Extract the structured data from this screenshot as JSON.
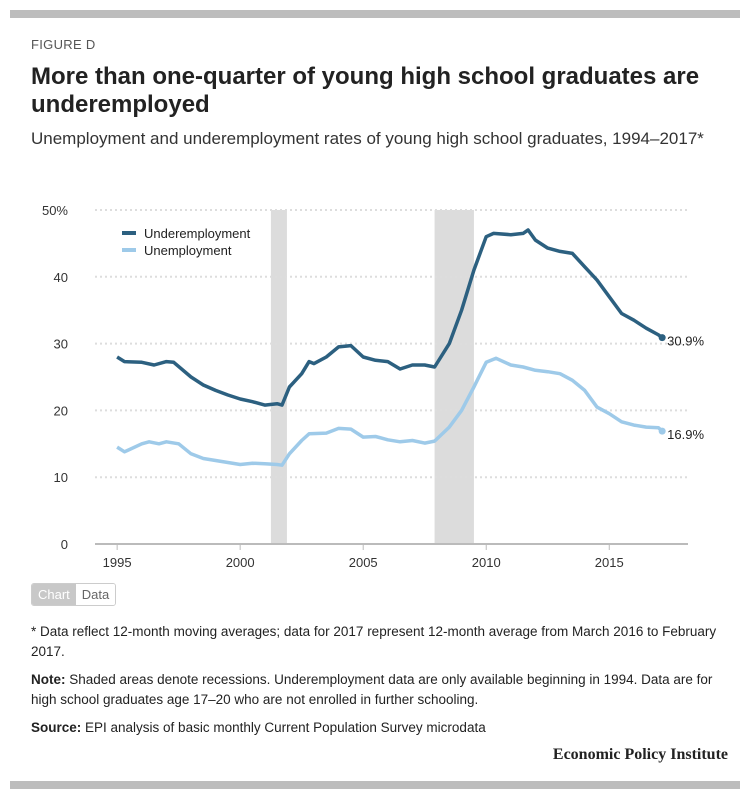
{
  "figure_label": "FIGURE D",
  "title": "More than one-quarter of young high school graduates are underemployed",
  "subtitle": "Unemployment and underemployment rates of young high school graduates, 1994–2017*",
  "toggle": {
    "chart": "Chart",
    "data": "Data"
  },
  "notes": {
    "footnote": "* Data reflect 12-month moving averages; data for 2017 represent 12-month average from March 2016 to February 2017.",
    "note_label": "Note:",
    "note_text": " Shaded areas denote recessions. Underemployment data are only available beginning in 1994. Data are for high school graduates age 17–20 who are not enrolled in further schooling.",
    "source_label": "Source:",
    "source_text": " EPI analysis of basic monthly Current Population Survey microdata"
  },
  "brand": "Economic Policy Institute",
  "chart_data": {
    "type": "line",
    "title": "",
    "xlabel": "",
    "ylabel": "",
    "xlim": [
      1994.1,
      2018.2
    ],
    "ylim": [
      0,
      50
    ],
    "xticks": [
      1995,
      2000,
      2005,
      2010,
      2015
    ],
    "yticks": [
      {
        "v": 0,
        "label": "0"
      },
      {
        "v": 10,
        "label": "10"
      },
      {
        "v": 20,
        "label": "20"
      },
      {
        "v": 30,
        "label": "30"
      },
      {
        "v": 40,
        "label": "40"
      },
      {
        "v": 50,
        "label": "50%"
      }
    ],
    "grid": true,
    "legend": "top-left",
    "recessions": [
      [
        2001.25,
        2001.9
      ],
      [
        2007.9,
        2009.5
      ]
    ],
    "series": [
      {
        "name": "Underemployment",
        "color": "#2c6080",
        "end_label": "30.9%",
        "x": [
          1995,
          1995.3,
          1996,
          1996.5,
          1997,
          1997.3,
          1998,
          1998.5,
          1999,
          1999.5,
          2000,
          2000.5,
          2001,
          2001.5,
          2001.7,
          2002,
          2002.5,
          2002.8,
          2003,
          2003.5,
          2004,
          2004.5,
          2005,
          2005.5,
          2006,
          2006.5,
          2007,
          2007.5,
          2007.9,
          2008.5,
          2009,
          2009.5,
          2010,
          2010.3,
          2011,
          2011.5,
          2011.7,
          2012,
          2012.5,
          2013,
          2013.5,
          2014,
          2014.5,
          2015,
          2015.5,
          2016,
          2016.5,
          2017,
          2017.15
        ],
        "y": [
          28.0,
          27.3,
          27.2,
          26.8,
          27.3,
          27.2,
          25.0,
          23.8,
          23.0,
          22.3,
          21.7,
          21.3,
          20.8,
          21.0,
          20.8,
          23.5,
          25.5,
          27.3,
          27.0,
          28.0,
          29.5,
          29.7,
          28.0,
          27.5,
          27.3,
          26.2,
          26.8,
          26.8,
          26.5,
          30,
          35,
          41,
          46,
          46.5,
          46.3,
          46.5,
          47,
          45.5,
          44.3,
          43.8,
          43.5,
          41.5,
          39.5,
          37,
          34.5,
          33.5,
          32.3,
          31.3,
          30.9
        ]
      },
      {
        "name": "Unemployment",
        "color": "#9ecae9",
        "end_label": "16.9%",
        "x": [
          1995,
          1995.3,
          1996,
          1996.3,
          1996.7,
          1997,
          1997.5,
          1998,
          1998.5,
          1999,
          1999.5,
          2000,
          2000.5,
          2001,
          2001.5,
          2001.7,
          2002,
          2002.5,
          2002.8,
          2003.5,
          2004,
          2004.5,
          2005,
          2005.5,
          2006,
          2006.5,
          2007,
          2007.5,
          2007.9,
          2008.5,
          2009,
          2009.5,
          2010,
          2010.4,
          2011,
          2011.5,
          2012,
          2012.5,
          2013,
          2013.5,
          2014,
          2014.5,
          2015,
          2015.5,
          2016,
          2016.5,
          2017,
          2017.15
        ],
        "y": [
          14.5,
          13.8,
          15.0,
          15.3,
          15.0,
          15.3,
          15.0,
          13.5,
          12.8,
          12.5,
          12.2,
          11.9,
          12.1,
          12.0,
          11.9,
          11.8,
          13.5,
          15.5,
          16.5,
          16.6,
          17.3,
          17.2,
          16.0,
          16.1,
          15.6,
          15.3,
          15.5,
          15.1,
          15.4,
          17.5,
          20,
          23.5,
          27.2,
          27.8,
          26.8,
          26.5,
          26,
          25.8,
          25.5,
          24.5,
          23,
          20.5,
          19.5,
          18.3,
          17.8,
          17.5,
          17.4,
          16.9
        ]
      }
    ]
  }
}
